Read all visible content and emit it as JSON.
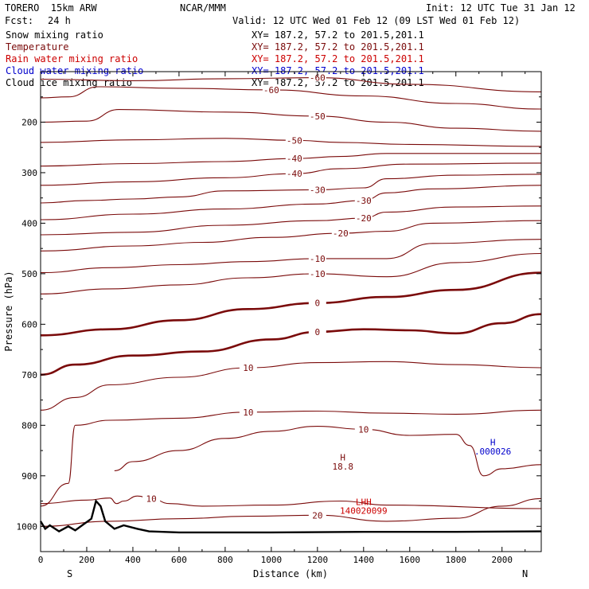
{
  "header": {
    "model": "TORERO  15km ARW",
    "center": "NCAR/MMM",
    "init": "Init: 12 UTC Tue 31 Jan 12",
    "fcst_label": "Fcst:",
    "fcst_value": "24 h",
    "valid": "Valid: 12 UTC Wed 01 Feb 12 (09 LST Wed 01 Feb 12)"
  },
  "colors": {
    "temperature": "#7a0a0a",
    "rain": "#cc0000",
    "cloud_water": "#0000cc",
    "black": "#000000"
  },
  "fields": [
    {
      "name": "Snow mixing ratio",
      "color": "#000000",
      "xy": "XY= 187.2, 57.2 to 201.5,201.1"
    },
    {
      "name": "Temperature",
      "color": "#7a0a0a",
      "xy": "XY= 187.2, 57.2 to 201.5,201.1"
    },
    {
      "name": "Rain water mixing ratio",
      "color": "#cc0000",
      "xy": "XY= 187.2, 57.2 to 201.5,201.1"
    },
    {
      "name": "Cloud water mixing ratio",
      "color": "#0000cc",
      "xy": "XY= 187.2, 57.2 to 201.5,201.1"
    },
    {
      "name": "Cloud ice mixing ratio",
      "color": "#000000",
      "xy": "XY= 187.2, 57.2 to 201.5,201.1"
    }
  ],
  "chart_data": {
    "type": "line",
    "xlabel": "Distance (km)",
    "ylabel": "Pressure (hPa)",
    "xlim": [
      0,
      2170
    ],
    "ylim": [
      1050,
      100
    ],
    "xticks": [
      0,
      200,
      400,
      600,
      800,
      1000,
      1200,
      1400,
      1600,
      1800,
      2000
    ],
    "yticks": [
      200,
      300,
      400,
      500,
      600,
      700,
      800,
      900,
      1000
    ],
    "left_end_label": "S",
    "right_end_label": "N",
    "temperature_contours": [
      {
        "level": -60,
        "points": [
          [
            0,
            115
          ],
          [
            400,
            118
          ],
          [
            800,
            114
          ],
          [
            1200,
            112
          ],
          [
            1600,
            125
          ],
          [
            2170,
            140
          ]
        ]
      },
      {
        "level": -60,
        "points": [
          [
            0,
            152
          ],
          [
            120,
            150
          ],
          [
            250,
            130
          ],
          [
            600,
            133
          ],
          [
            1000,
            136
          ],
          [
            1400,
            148
          ],
          [
            1800,
            163
          ],
          [
            2170,
            174
          ]
        ]
      },
      {
        "level": -50,
        "points": [
          [
            0,
            200
          ],
          [
            200,
            198
          ],
          [
            340,
            175
          ],
          [
            800,
            180
          ],
          [
            1200,
            188
          ],
          [
            1500,
            200
          ],
          [
            1800,
            212
          ],
          [
            2170,
            218
          ]
        ]
      },
      {
        "level": -50,
        "points": [
          [
            0,
            240
          ],
          [
            400,
            235
          ],
          [
            800,
            232
          ],
          [
            1100,
            236
          ],
          [
            1300,
            240
          ],
          [
            1600,
            244
          ],
          [
            2170,
            248
          ]
        ]
      },
      {
        "level": -40,
        "points": [
          [
            0,
            287
          ],
          [
            400,
            282
          ],
          [
            800,
            278
          ],
          [
            1100,
            272
          ],
          [
            1300,
            268
          ],
          [
            1500,
            262
          ],
          [
            2170,
            262
          ]
        ]
      },
      {
        "level": -40,
        "points": [
          [
            0,
            325
          ],
          [
            400,
            318
          ],
          [
            800,
            310
          ],
          [
            1100,
            302
          ],
          [
            1300,
            292
          ],
          [
            1600,
            283
          ],
          [
            2170,
            281
          ]
        ]
      },
      {
        "level": -30,
        "points": [
          [
            0,
            360
          ],
          [
            200,
            355
          ],
          [
            400,
            352
          ],
          [
            600,
            348
          ],
          [
            800,
            336
          ],
          [
            1200,
            334
          ],
          [
            1400,
            330
          ],
          [
            1500,
            312
          ],
          [
            1800,
            305
          ],
          [
            2170,
            303
          ]
        ]
      },
      {
        "level": -30,
        "points": [
          [
            0,
            393
          ],
          [
            400,
            382
          ],
          [
            800,
            372
          ],
          [
            1200,
            362
          ],
          [
            1400,
            355
          ],
          [
            1500,
            340
          ],
          [
            1700,
            332
          ],
          [
            2170,
            325
          ]
        ]
      },
      {
        "level": -20,
        "points": [
          [
            0,
            423
          ],
          [
            400,
            418
          ],
          [
            800,
            404
          ],
          [
            1200,
            395
          ],
          [
            1400,
            390
          ],
          [
            1500,
            378
          ],
          [
            1800,
            368
          ],
          [
            2170,
            366
          ]
        ]
      },
      {
        "level": -20,
        "points": [
          [
            0,
            455
          ],
          [
            400,
            445
          ],
          [
            700,
            438
          ],
          [
            1000,
            428
          ],
          [
            1300,
            420
          ],
          [
            1500,
            416
          ],
          [
            1700,
            400
          ],
          [
            2170,
            395
          ]
        ]
      },
      {
        "level": -10,
        "points": [
          [
            0,
            498
          ],
          [
            300,
            488
          ],
          [
            600,
            482
          ],
          [
            900,
            476
          ],
          [
            1200,
            470
          ],
          [
            1500,
            470
          ],
          [
            1700,
            440
          ],
          [
            2170,
            432
          ]
        ]
      },
      {
        "level": -10,
        "points": [
          [
            0,
            540
          ],
          [
            300,
            530
          ],
          [
            600,
            522
          ],
          [
            900,
            508
          ],
          [
            1200,
            500
          ],
          [
            1500,
            506
          ],
          [
            1800,
            478
          ],
          [
            2170,
            460
          ]
        ]
      },
      {
        "level": 0,
        "points": [
          [
            0,
            622
          ],
          [
            300,
            610
          ],
          [
            600,
            592
          ],
          [
            900,
            570
          ],
          [
            1200,
            558
          ],
          [
            1500,
            546
          ],
          [
            1800,
            532
          ],
          [
            2170,
            498
          ]
        ]
      },
      {
        "level": 0,
        "points": [
          [
            0,
            700
          ],
          [
            150,
            680
          ],
          [
            400,
            662
          ],
          [
            700,
            654
          ],
          [
            1000,
            630
          ],
          [
            1200,
            615
          ],
          [
            1400,
            610
          ],
          [
            1600,
            612
          ],
          [
            1800,
            618
          ],
          [
            2000,
            598
          ],
          [
            2170,
            580
          ]
        ]
      },
      {
        "level": 10,
        "points": [
          [
            0,
            770
          ],
          [
            150,
            745
          ],
          [
            300,
            720
          ],
          [
            600,
            705
          ],
          [
            900,
            686
          ],
          [
            1200,
            676
          ],
          [
            1500,
            674
          ],
          [
            1800,
            680
          ],
          [
            2170,
            686
          ]
        ]
      },
      {
        "level": 10,
        "points": [
          [
            0,
            960
          ],
          [
            120,
            915
          ],
          [
            150,
            800
          ],
          [
            300,
            790
          ],
          [
            600,
            786
          ],
          [
            900,
            774
          ],
          [
            1200,
            772
          ],
          [
            1500,
            776
          ],
          [
            1800,
            778
          ],
          [
            2170,
            770
          ]
        ]
      },
      {
        "level": 10,
        "points": [
          [
            320,
            890
          ],
          [
            400,
            872
          ],
          [
            600,
            850
          ],
          [
            800,
            826
          ],
          [
            1000,
            812
          ],
          [
            1200,
            802
          ],
          [
            1400,
            808
          ],
          [
            1600,
            820
          ],
          [
            1800,
            818
          ],
          [
            1860,
            840
          ],
          [
            1920,
            900
          ],
          [
            2000,
            886
          ],
          [
            2170,
            878
          ]
        ]
      },
      {
        "level": 20,
        "points": [
          [
            0,
            1000
          ],
          [
            300,
            990
          ],
          [
            600,
            985
          ],
          [
            900,
            980
          ],
          [
            1200,
            978
          ],
          [
            1500,
            990
          ],
          [
            1800,
            984
          ],
          [
            2000,
            960
          ],
          [
            2170,
            945
          ]
        ]
      },
      {
        "level": 10,
        "points": [
          [
            0,
            955
          ],
          [
            200,
            948
          ],
          [
            300,
            944
          ],
          [
            330,
            955
          ],
          [
            360,
            950
          ],
          [
            420,
            940
          ],
          [
            480,
            945
          ],
          [
            560,
            955
          ],
          [
            700,
            960
          ],
          [
            1000,
            958
          ],
          [
            1300,
            950
          ],
          [
            1500,
            958
          ],
          [
            2170,
            965
          ]
        ]
      }
    ],
    "highlighted_contour": 0,
    "terrain_points": [
      [
        0,
        990
      ],
      [
        20,
        1005
      ],
      [
        40,
        998
      ],
      [
        80,
        1010
      ],
      [
        120,
        1000
      ],
      [
        150,
        1008
      ],
      [
        180,
        998
      ],
      [
        220,
        985
      ],
      [
        240,
        950
      ],
      [
        260,
        960
      ],
      [
        280,
        990
      ],
      [
        320,
        1005
      ],
      [
        360,
        998
      ],
      [
        420,
        1005
      ],
      [
        470,
        1010
      ],
      [
        600,
        1012
      ],
      [
        1000,
        1012
      ],
      [
        1400,
        1011
      ],
      [
        1800,
        1011
      ],
      [
        2170,
        1010
      ]
    ],
    "annotations": [
      {
        "text": "H",
        "x": 1310,
        "y": 870,
        "color": "#7a0a0a"
      },
      {
        "text": "18.8",
        "x": 1310,
        "y": 888,
        "color": "#7a0a0a"
      },
      {
        "text": "H",
        "x": 1960,
        "y": 840,
        "color": "#0000cc"
      },
      {
        "text": ".000026",
        "x": 1960,
        "y": 858,
        "color": "#0000cc"
      },
      {
        "text": "LHH",
        "x": 1400,
        "y": 958,
        "color": "#cc0000"
      },
      {
        "text": "140020099",
        "x": 1400,
        "y": 975,
        "color": "#cc0000"
      }
    ]
  }
}
